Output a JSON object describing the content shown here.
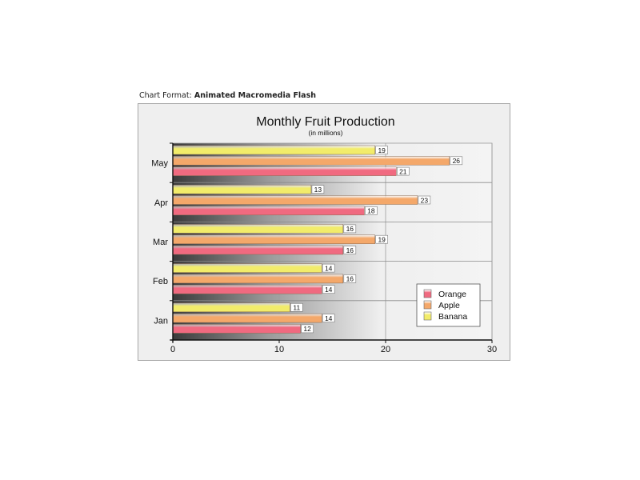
{
  "caption": {
    "label": "Chart Format:",
    "value": "Animated Macromedia Flash"
  },
  "chart_data": {
    "type": "bar",
    "orientation": "horizontal",
    "title": "Monthly Fruit Production",
    "subtitle": "(in millions)",
    "categories": [
      "Jan",
      "Feb",
      "Mar",
      "Apr",
      "May"
    ],
    "series": [
      {
        "name": "Orange",
        "values": [
          12,
          14,
          16,
          18,
          21
        ]
      },
      {
        "name": "Apple",
        "values": [
          14,
          16,
          19,
          23,
          26
        ]
      },
      {
        "name": "Banana",
        "values": [
          11,
          14,
          16,
          13,
          19
        ]
      }
    ],
    "xlim": [
      0,
      30
    ],
    "xticks": [
      0,
      10,
      20,
      30
    ],
    "grid": true,
    "legend_position": "bottom-right",
    "colors": {
      "Orange": "#f06a80",
      "Apple": "#f4a86a",
      "Banana": "#f2ec6a",
      "frame_bg": "#efefef",
      "frame_border": "#a8a8a8"
    }
  }
}
